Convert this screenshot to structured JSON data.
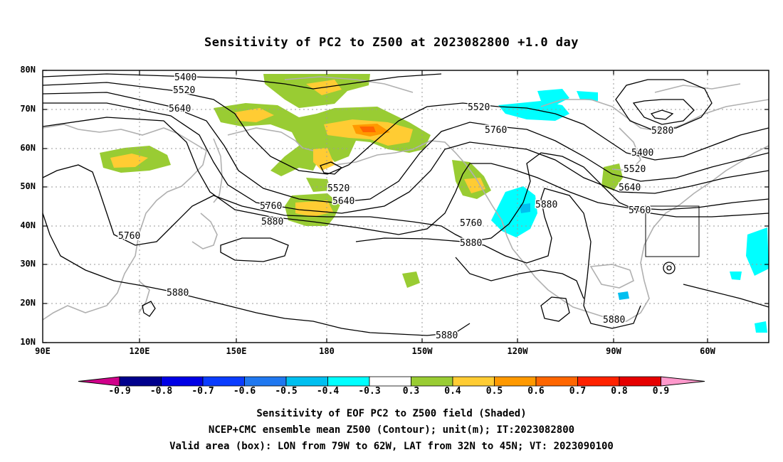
{
  "title": "Sensitivity of PC2 to Z500 at 2023082800 +1.0 day",
  "lat_labels": [
    "80N",
    "70N",
    "60N",
    "50N",
    "40N",
    "30N",
    "20N",
    "10N"
  ],
  "lon_labels": [
    "90E",
    "120E",
    "150E",
    "180",
    "150W",
    "120W",
    "90W",
    "60W"
  ],
  "contour_labels": [
    "5400",
    "5520",
    "5640",
    "5280",
    "5520",
    "5640",
    "5760",
    "5880",
    "5760",
    "5880",
    "5400",
    "5520",
    "5640",
    "5760",
    "5520",
    "5640",
    "5760",
    "5880",
    "5760",
    "5880",
    "5880",
    "5760",
    "5880",
    "5880"
  ],
  "colorbar": {
    "labels": [
      "-0.9",
      "-0.8",
      "-0.7",
      "-0.6",
      "-0.5",
      "-0.4",
      "-0.3",
      "0.3",
      "0.4",
      "0.5",
      "0.6",
      "0.7",
      "0.8",
      "0.9"
    ],
    "colors": [
      "#d0008a",
      "#00008c",
      "#0000e6",
      "#0a3cff",
      "#1f78f0",
      "#00bff0",
      "#00ffff",
      "#ffffff",
      "#99cc33",
      "#ffcc33",
      "#ff9900",
      "#ff6600",
      "#ff2200",
      "#e60000",
      "#ff99cc"
    ]
  },
  "captions": [
    "Sensitivity of EOF PC2 to Z500 field (Shaded)",
    "NCEP+CMC ensemble mean Z500 (Contour); unit(m); IT:2023082800",
    "Valid area (box): LON from 79W to 62W, LAT from 32N to 45N; VT: 2023090100"
  ],
  "colors": {
    "coast": "#b0b0b0",
    "contour": "#000000",
    "grid": "#9a9a9a"
  }
}
